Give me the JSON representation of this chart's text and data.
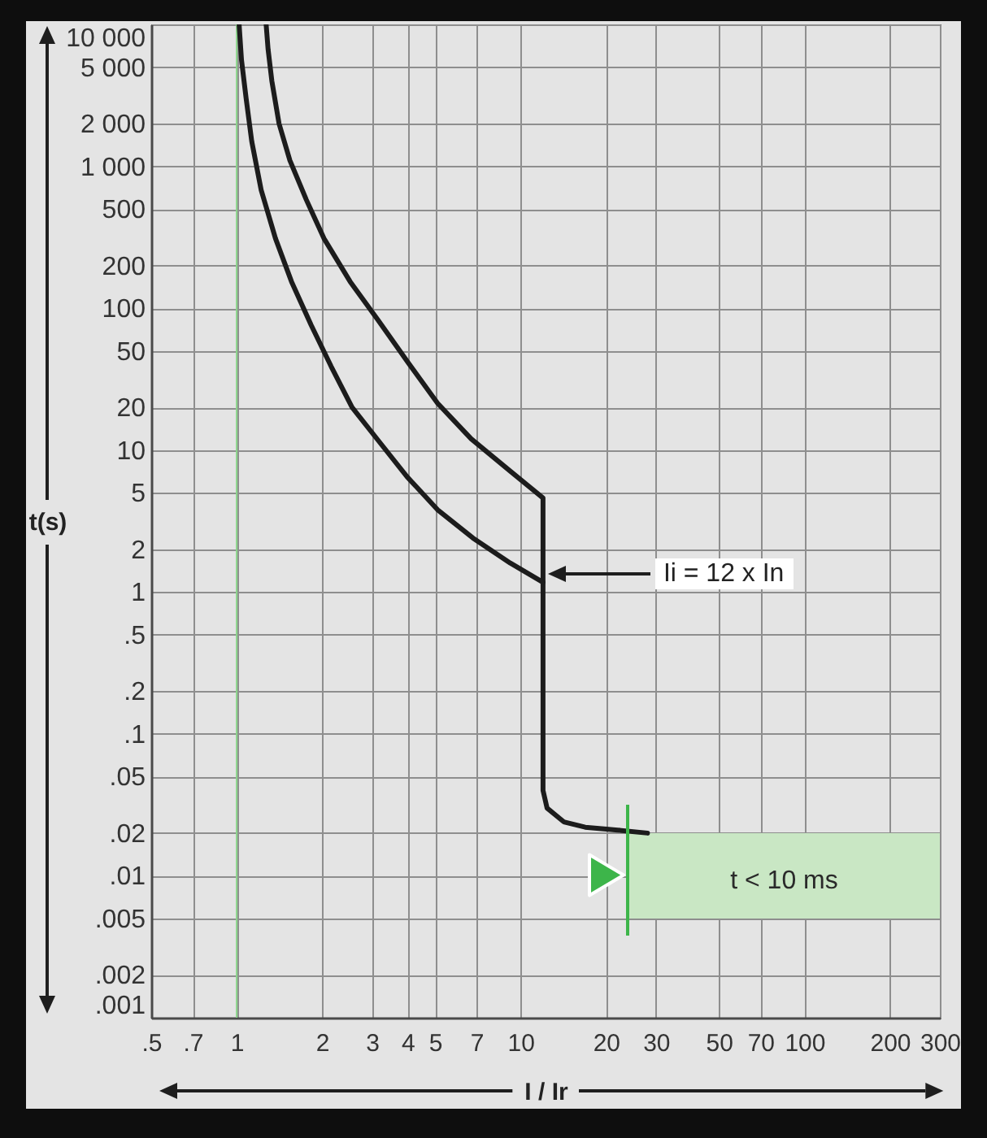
{
  "chart_data": {
    "type": "line",
    "xlabel": "I / Ir",
    "ylabel": "t(s)",
    "log": "xy",
    "grid": true,
    "line_style": "solid",
    "xlim": [
      0.5,
      300
    ],
    "ylim": [
      0.001,
      10000
    ],
    "xticks": [
      {
        "value": 0.5,
        "label": ".5"
      },
      {
        "value": 0.7,
        "label": ".7"
      },
      1,
      2,
      3,
      4,
      5,
      7,
      10,
      20,
      30,
      50,
      70,
      100,
      200,
      300
    ],
    "yticks": [
      {
        "value": 0.001,
        "label": ".001"
      },
      {
        "value": 0.002,
        "label": ".002"
      },
      {
        "value": 0.005,
        "label": ".005"
      },
      {
        "value": 0.01,
        "label": ".01"
      },
      {
        "value": 0.02,
        "label": ".02"
      },
      {
        "value": 0.05,
        "label": ".05"
      },
      {
        "value": 0.1,
        "label": ".1"
      },
      {
        "value": 0.2,
        "label": ".2"
      },
      {
        "value": 0.5,
        "label": ".5"
      },
      1,
      2,
      5,
      10,
      20,
      50,
      100,
      200,
      500,
      {
        "value": 1000,
        "label": "1 000"
      },
      {
        "value": 2000,
        "label": "2 000"
      },
      {
        "value": 5000,
        "label": "5 000"
      },
      {
        "value": 10000,
        "label": "10 000"
      }
    ],
    "series": [
      {
        "color": "#1c1c1c",
        "x": [
          1.27,
          1.29,
          1.33,
          1.41,
          1.54,
          1.76,
          2.03,
          2.51,
          3.14,
          4.03,
          5.1,
          6.7,
          9.2,
          12,
          12,
          12.4,
          14.2,
          16.9,
          22,
          28
        ],
        "values": [
          10000,
          6700,
          4000,
          2000,
          1100,
          580,
          310,
          154,
          83,
          41,
          21.4,
          12,
          7.1,
          4.6,
          0.04,
          0.03,
          0.024,
          0.022,
          0.021,
          0.02
        ]
      },
      {
        "color": "#1c1c1c",
        "x": [
          1.02,
          1.04,
          1.08,
          1.13,
          1.22,
          1.37,
          1.56,
          1.83,
          2.15,
          2.55,
          3.23,
          3.98,
          5.1,
          6.8,
          9.2,
          12
        ],
        "values": [
          10000,
          5600,
          3000,
          1500,
          680,
          310,
          154,
          76,
          39,
          20,
          11,
          6.5,
          3.8,
          2.4,
          1.6,
          1.17
        ]
      },
      {
        "color": "#c9e7c4",
        "x": [
          24,
          300
        ],
        "values": [
          null,
          null
        ],
        "lower": [
          0.005,
          0.005
        ],
        "upper": [
          0.02,
          0.02
        ]
      }
    ],
    "ref_lines": [
      {
        "axis": "x",
        "value": 1,
        "color": "#8ad58a"
      }
    ],
    "annotations": [
      "Ii = 12 x In",
      "t < 10 ms"
    ]
  }
}
